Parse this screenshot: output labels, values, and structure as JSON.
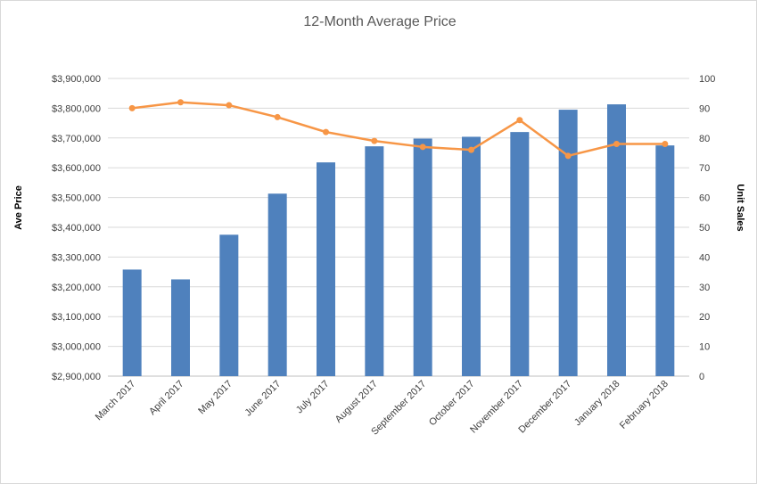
{
  "chart_data": {
    "type": "bar",
    "title": "12-Month Average Price",
    "categories": [
      "March 2017",
      "April 2017",
      "May 2017",
      "June 2017",
      "July 2017",
      "August 2017",
      "September 2017",
      "October 2017",
      "November 2017",
      "December 2017",
      "January 2018",
      "February 2018"
    ],
    "ylabel": "Ave Price",
    "ylabel_right": "Unit Sales",
    "ylim": [
      2900000,
      3900000
    ],
    "ylim_right": [
      0,
      100
    ],
    "y_ticks": [
      "$2,900,000",
      "$3,000,000",
      "$3,100,000",
      "$3,200,000",
      "$3,300,000",
      "$3,400,000",
      "$3,500,000",
      "$3,600,000",
      "$3,700,000",
      "$3,800,000",
      "$3,900,000"
    ],
    "y_ticks_right": [
      "0",
      "10",
      "20",
      "30",
      "40",
      "50",
      "60",
      "70",
      "80",
      "90",
      "100"
    ],
    "grid": true,
    "legend": "none",
    "series": [
      {
        "type": "bar",
        "axis": "left",
        "color": "#4f81bd",
        "values": [
          3258000,
          3225000,
          3375000,
          3513000,
          3618000,
          3672000,
          3698000,
          3704000,
          3720000,
          3795000,
          3813000,
          3675000
        ]
      },
      {
        "type": "line",
        "axis": "right",
        "color": "#f79646",
        "values": [
          90,
          92,
          91,
          87,
          82,
          79,
          77,
          76,
          86,
          74,
          78,
          78
        ]
      }
    ]
  }
}
